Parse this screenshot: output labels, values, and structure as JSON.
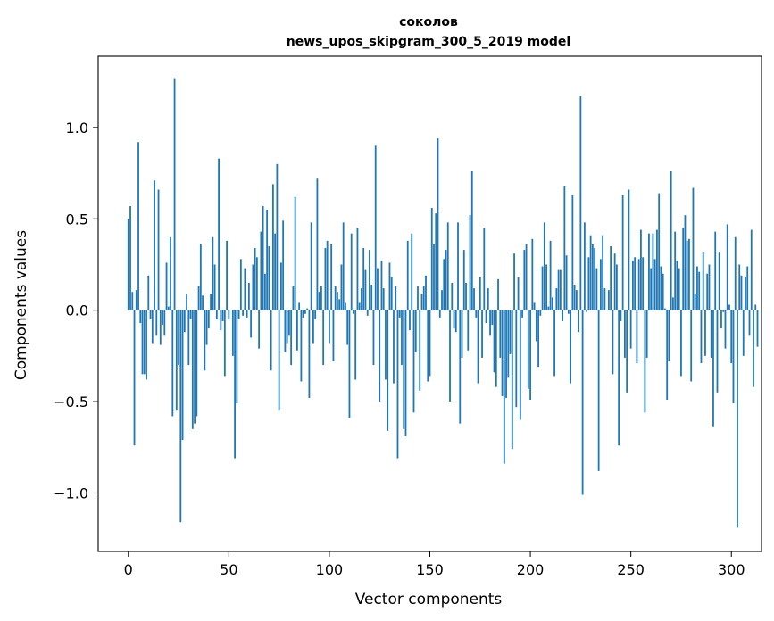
{
  "chart_data": {
    "type": "bar",
    "title_line1": "соколов",
    "title_line2": "news_upos_skipgram_300_5_2019 model",
    "xlabel": "Vector components",
    "ylabel": "Components values",
    "xlim": [
      -15,
      315
    ],
    "ylim": [
      -1.32,
      1.39
    ],
    "x_ticks": [
      0,
      50,
      100,
      150,
      200,
      250,
      300
    ],
    "x_tick_labels": [
      "0",
      "50",
      "100",
      "150",
      "200",
      "250",
      "300"
    ],
    "y_ticks": [
      -1.0,
      -0.5,
      0.0,
      0.5,
      1.0
    ],
    "y_tick_labels": [
      "−1.0",
      "−0.5",
      "0.0",
      "0.5",
      "1.0"
    ],
    "grid": false,
    "bar_color": "#1f77b4",
    "values": [
      0.5,
      0.57,
      0.1,
      -0.74,
      0.11,
      0.92,
      -0.07,
      -0.35,
      -0.35,
      -0.38,
      0.19,
      -0.05,
      -0.18,
      0.71,
      -0.14,
      0.66,
      -0.19,
      -0.08,
      -0.14,
      0.26,
      0.02,
      0.4,
      -0.58,
      1.27,
      -0.55,
      -0.3,
      -1.16,
      -0.71,
      -0.12,
      0.09,
      -0.3,
      -0.05,
      -0.65,
      -0.62,
      -0.58,
      0.13,
      0.36,
      0.08,
      -0.33,
      -0.19,
      -0.1,
      0.09,
      0.4,
      0.25,
      -0.05,
      0.83,
      -0.11,
      -0.06,
      -0.36,
      0.38,
      -0.05,
      0.0,
      -0.25,
      -0.81,
      -0.51,
      -0.05,
      0.28,
      -0.03,
      0.23,
      -0.04,
      0.15,
      -0.15,
      0.25,
      0.34,
      0.29,
      -0.21,
      0.43,
      0.57,
      0.2,
      0.55,
      0.35,
      -0.33,
      0.69,
      0.42,
      0.8,
      -0.55,
      0.26,
      0.49,
      -0.23,
      -0.18,
      -0.14,
      -0.3,
      0.13,
      0.62,
      -0.22,
      0.04,
      -0.39,
      -0.04,
      -0.02,
      0.01,
      -0.48,
      0.48,
      -0.18,
      -0.05,
      0.72,
      0.1,
      0.13,
      -0.3,
      0.34,
      0.38,
      -0.18,
      0.36,
      -0.28,
      0.13,
      0.1,
      0.06,
      0.25,
      0.48,
      0.04,
      -0.19,
      -0.59,
      0.42,
      -0.02,
      -0.38,
      0.45,
      0.04,
      0.12,
      0.34,
      0.22,
      -0.03,
      0.33,
      0.14,
      -0.3,
      0.9,
      0.23,
      -0.5,
      0.27,
      0.12,
      -0.38,
      -0.66,
      0.26,
      0.18,
      -0.4,
      0.13,
      -0.81,
      -0.04,
      -0.3,
      -0.65,
      -0.69,
      0.38,
      -0.11,
      0.42,
      -0.56,
      -0.23,
      0.13,
      -0.44,
      0.09,
      0.13,
      0.19,
      -0.39,
      -0.36,
      0.56,
      0.36,
      0.53,
      0.94,
      -0.04,
      0.11,
      0.28,
      0.33,
      0.48,
      -0.5,
      0.15,
      -0.1,
      -0.12,
      0.48,
      -0.62,
      -0.26,
      0.33,
      0.15,
      -0.22,
      0.52,
      0.76,
      0.12,
      -0.04,
      -0.4,
      0.18,
      -0.26,
      0.45,
      -0.07,
      0.12,
      -0.14,
      -0.08,
      -0.34,
      -0.42,
      0.17,
      -0.26,
      -0.47,
      -0.84,
      -0.48,
      -0.37,
      -0.24,
      -0.76,
      0.31,
      -0.53,
      0.18,
      -0.6,
      -0.04,
      0.33,
      0.36,
      -0.43,
      -0.49,
      0.39,
      0.04,
      -0.17,
      -0.31,
      -0.03,
      0.24,
      0.48,
      0.25,
      0.02,
      0.38,
      0.07,
      -0.36,
      0.12,
      0.22,
      0.22,
      -0.06,
      0.68,
      0.3,
      -0.02,
      -0.4,
      0.63,
      0.14,
      0.11,
      -0.12,
      1.17,
      -1.01,
      0.48,
      -0.01,
      0.29,
      0.41,
      0.36,
      0.34,
      0.23,
      -0.88,
      0.28,
      0.41,
      0.12,
      0.0,
      0.11,
      0.35,
      -0.35,
      0.31,
      0.25,
      -0.74,
      -0.06,
      0.63,
      -0.26,
      -0.45,
      0.66,
      -0.21,
      0.27,
      0.29,
      -0.29,
      0.28,
      0.44,
      0.29,
      -0.56,
      -0.26,
      0.42,
      0.23,
      0.42,
      0.28,
      0.44,
      0.64,
      0.24,
      0.2,
      0.01,
      -0.49,
      -0.28,
      0.76,
      0.07,
      0.43,
      0.27,
      0.23,
      -0.36,
      0.45,
      0.52,
      0.38,
      0.39,
      -0.39,
      0.67,
      0.09,
      0.24,
      0.21,
      -0.29,
      0.32,
      -0.25,
      0.2,
      0.25,
      -0.26,
      -0.64,
      0.43,
      -0.45,
      0.32,
      -0.1,
      -0.01,
      -0.21,
      0.47,
      0.03,
      -0.29,
      -0.51,
      0.4,
      -1.19,
      0.25,
      0.19,
      -0.25,
      0.18,
      0.24,
      -0.14,
      0.44,
      -0.42,
      0.03,
      -0.2
    ]
  }
}
